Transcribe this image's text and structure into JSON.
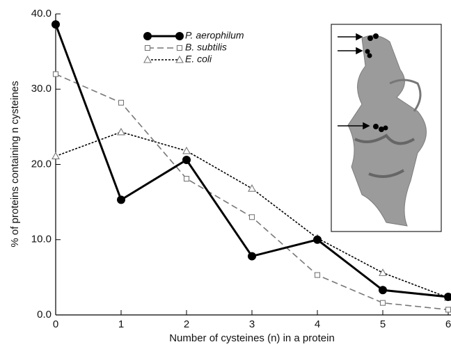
{
  "chart_data": {
    "type": "line",
    "xlabel": "Number of cysteines (n) in a protein",
    "ylabel": "% of proteins containing n cysteines",
    "x": [
      0,
      1,
      2,
      3,
      4,
      5,
      6
    ],
    "xlim": [
      0,
      6
    ],
    "xticks": [
      0,
      1,
      2,
      3,
      4,
      5,
      6
    ],
    "ylim": [
      0,
      40
    ],
    "yticks": [
      {
        "value": 0,
        "label": "0.0"
      },
      {
        "value": 10,
        "label": "10.0"
      },
      {
        "value": 20,
        "label": "20.0"
      },
      {
        "value": 30,
        "label": "30.0"
      },
      {
        "value": 40,
        "label": "40.0"
      }
    ],
    "grid": false,
    "series": [
      {
        "name": "P. aerophilum",
        "color": "#000000",
        "marker": "circle",
        "dash": "none",
        "values": [
          38.6,
          15.3,
          20.6,
          7.8,
          10.0,
          3.3,
          2.4
        ]
      },
      {
        "name": "B. subtilis",
        "color": "#777777",
        "marker": "square",
        "dash": "9,5",
        "values": [
          32.0,
          28.2,
          18.1,
          13.0,
          5.3,
          1.6,
          0.7
        ]
      },
      {
        "name": "E. coli",
        "color": "#000000",
        "marker": "triangle",
        "dash": "3,2",
        "values": [
          21.1,
          24.3,
          21.8,
          16.8,
          10.2,
          5.6,
          2.3
        ]
      }
    ]
  }
}
